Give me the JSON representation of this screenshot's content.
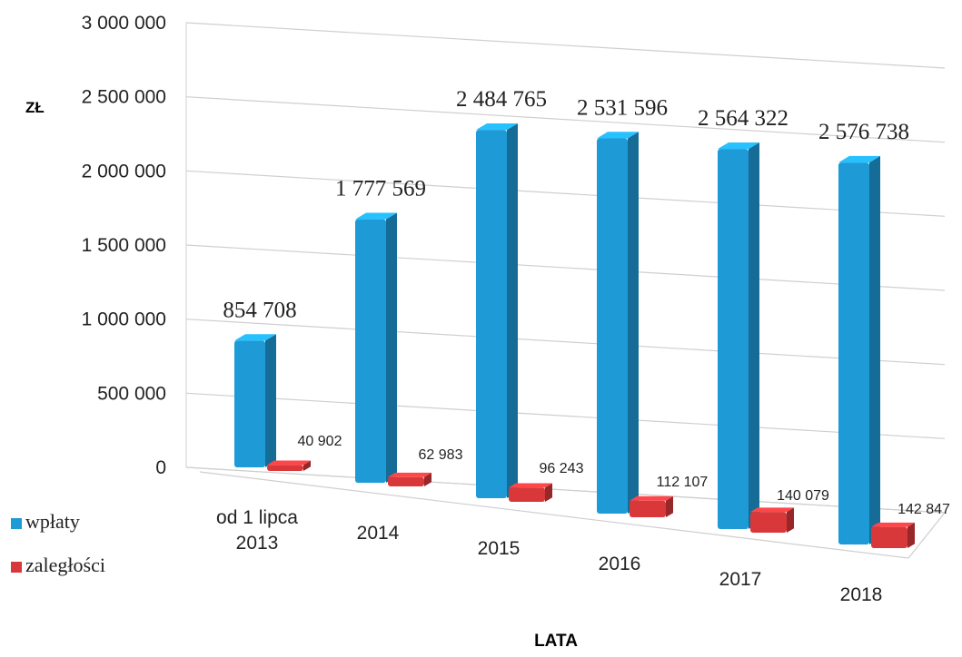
{
  "chart_data": {
    "type": "bar3d",
    "y_label": "ZŁ",
    "x_label": "LATA",
    "categories": [
      "od 1 lipca 2013",
      "2014",
      "2015",
      "2016",
      "2017",
      "2018"
    ],
    "series": [
      {
        "name": "wpłaty",
        "color": "#1e9ad6",
        "values": [
          854708,
          1777569,
          2484765,
          2531596,
          2564322,
          2576738
        ],
        "value_labels": [
          "854 708",
          "1 777 569",
          "2 484 765",
          "2 531 596",
          "2 564 322",
          "2 576 738"
        ]
      },
      {
        "name": "zaległości",
        "color": "#d9383a",
        "values": [
          40902,
          62983,
          96243,
          112107,
          140079,
          142847
        ],
        "value_labels": [
          "40 902",
          "62 983",
          "96 243",
          "112 107",
          "140 079",
          "142 847"
        ]
      }
    ],
    "ylim": [
      0,
      3000000
    ],
    "yticks": [
      0,
      {
        "value": 500000,
        "label": "500 000"
      },
      {
        "value": 1000000,
        "label": "1 000 000"
      },
      {
        "value": 1500000,
        "label": "1 500 000"
      },
      {
        "value": 2000000,
        "label": "2 000 000"
      },
      {
        "value": 2500000,
        "label": "2 500 000"
      },
      {
        "value": 3000000,
        "label": "3 000 000"
      }
    ],
    "grid": true,
    "legend": "left"
  }
}
